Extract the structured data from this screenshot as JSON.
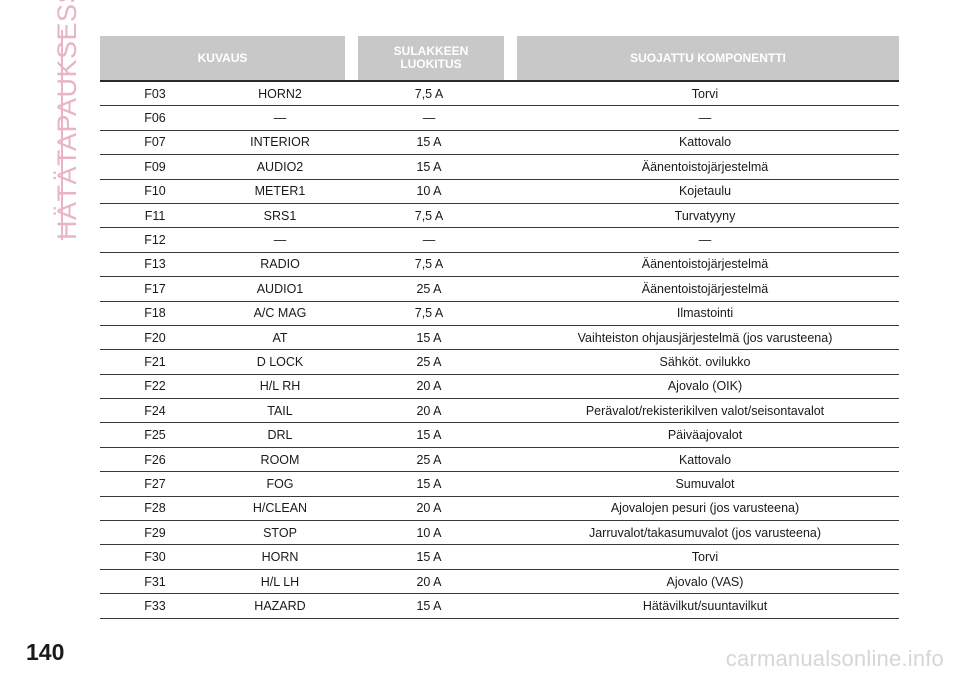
{
  "side_title": "HÄTÄTAPAUKSESSA",
  "page_number": "140",
  "watermark": "carmanualsonline.info",
  "table": {
    "headers": {
      "description": "KUVAUS",
      "rating": "SULAKKEEN\nLUOKITUS",
      "component": "SUOJATTU KOMPONENTTI"
    },
    "rows": [
      {
        "fuse": "F03",
        "description": "HORN2",
        "rating": "7,5 A",
        "component": "Torvi"
      },
      {
        "fuse": "F06",
        "description": "—",
        "rating": "—",
        "component": "—"
      },
      {
        "fuse": "F07",
        "description": "INTERIOR",
        "rating": "15 A",
        "component": "Kattovalo"
      },
      {
        "fuse": "F09",
        "description": "AUDIO2",
        "rating": "15 A",
        "component": "Äänentoistojärjestelmä"
      },
      {
        "fuse": "F10",
        "description": "METER1",
        "rating": "10 A",
        "component": "Kojetaulu"
      },
      {
        "fuse": "F11",
        "description": "SRS1",
        "rating": "7,5 A",
        "component": "Turvatyyny"
      },
      {
        "fuse": "F12",
        "description": "—",
        "rating": "—",
        "component": "—"
      },
      {
        "fuse": "F13",
        "description": "RADIO",
        "rating": "7,5 A",
        "component": "Äänentoistojärjestelmä"
      },
      {
        "fuse": "F17",
        "description": "AUDIO1",
        "rating": "25 A",
        "component": "Äänentoistojärjestelmä"
      },
      {
        "fuse": "F18",
        "description": "A/C MAG",
        "rating": "7,5 A",
        "component": "Ilmastointi"
      },
      {
        "fuse": "F20",
        "description": "AT",
        "rating": "15 A",
        "component": "Vaihteiston ohjausjärjestelmä (jos varusteena)"
      },
      {
        "fuse": "F21",
        "description": "D LOCK",
        "rating": "25 A",
        "component": "Sähköt. ovilukko"
      },
      {
        "fuse": "F22",
        "description": "H/L RH",
        "rating": "20 A",
        "component": "Ajovalo (OIK)"
      },
      {
        "fuse": "F24",
        "description": "TAIL",
        "rating": "20 A",
        "component": "Perävalot/rekisterikilven valot/seisontavalot"
      },
      {
        "fuse": "F25",
        "description": "DRL",
        "rating": "15 A",
        "component": "Päiväajovalot"
      },
      {
        "fuse": "F26",
        "description": "ROOM",
        "rating": "25 A",
        "component": "Kattovalo"
      },
      {
        "fuse": "F27",
        "description": "FOG",
        "rating": "15 A",
        "component": "Sumuvalot"
      },
      {
        "fuse": "F28",
        "description": "H/CLEAN",
        "rating": "20 A",
        "component": "Ajovalojen pesuri (jos varusteena)"
      },
      {
        "fuse": "F29",
        "description": "STOP",
        "rating": "10 A",
        "component": "Jarruvalot/takasumuvalot (jos varusteena)"
      },
      {
        "fuse": "F30",
        "description": "HORN",
        "rating": "15 A",
        "component": "Torvi"
      },
      {
        "fuse": "F31",
        "description": "H/L LH",
        "rating": "20 A",
        "component": "Ajovalo (VAS)"
      },
      {
        "fuse": "F33",
        "description": "HAZARD",
        "rating": "15 A",
        "component": "Hätävilkut/suuntavilkut"
      }
    ]
  }
}
